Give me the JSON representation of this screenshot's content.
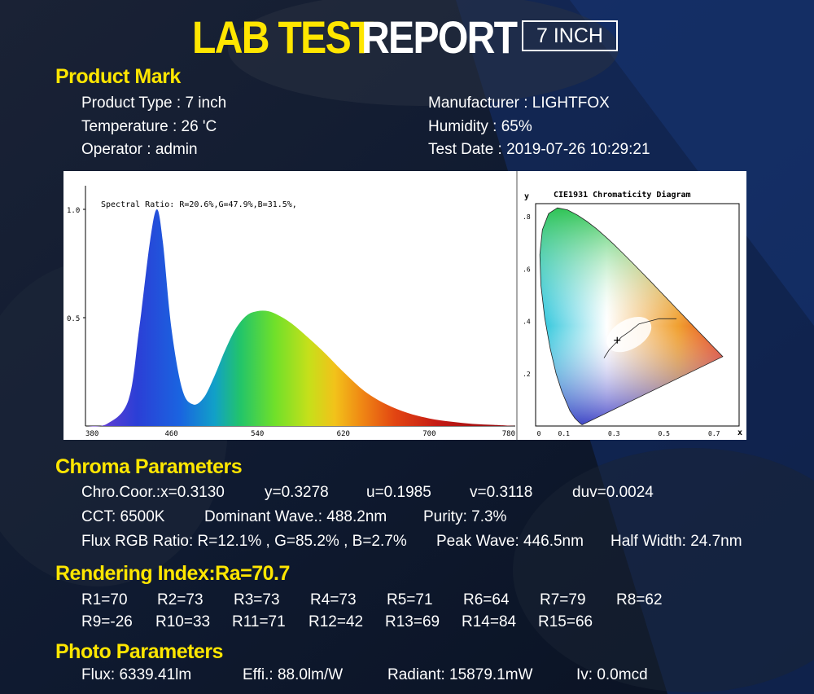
{
  "header": {
    "title_part1": "LAB TEST",
    "title_part2": "REPORT",
    "badge": "7 INCH"
  },
  "product_mark": {
    "heading": "Product Mark",
    "product_type": "Product Type : 7 inch",
    "temperature": "Temperature : 26 'C",
    "operator": "Operator : admin",
    "manufacturer": "Manufacturer : LIGHTFOX",
    "humidity": "Humidity : 65%",
    "test_date": "Test Date : 2019-07-26 10:29:21"
  },
  "chart_data": [
    {
      "type": "area",
      "annotation": "Spectral Ratio:  R=20.6%,G=47.9%,B=31.5%,",
      "x_ticks": [
        "380",
        "460",
        "540",
        "620",
        "700",
        "780"
      ],
      "y_ticks": [
        "1.0",
        "0.5"
      ],
      "xlim": [
        380,
        780
      ],
      "ylim": [
        0,
        1.0
      ],
      "x": [
        380,
        400,
        420,
        430,
        440,
        446.5,
        452,
        460,
        470,
        480,
        490,
        500,
        510,
        520,
        530,
        540,
        550,
        560,
        570,
        580,
        600,
        620,
        640,
        660,
        680,
        700,
        720,
        740,
        760,
        780
      ],
      "y": [
        0.0,
        0.01,
        0.12,
        0.45,
        0.85,
        1.0,
        0.85,
        0.45,
        0.17,
        0.1,
        0.13,
        0.23,
        0.35,
        0.45,
        0.51,
        0.53,
        0.53,
        0.51,
        0.48,
        0.44,
        0.35,
        0.25,
        0.16,
        0.1,
        0.06,
        0.035,
        0.02,
        0.01,
        0.005,
        0.0
      ]
    },
    {
      "type": "scatter",
      "title": "CIE1931 Chromaticity Diagram",
      "xlabel": "x",
      "ylabel": "y",
      "x_ticks": [
        "0",
        "0.1",
        "0.3",
        "0.5",
        "0.7"
      ],
      "y_ticks": [
        ".8",
        ".6",
        ".4",
        ".2"
      ],
      "xlim": [
        0,
        0.8
      ],
      "ylim": [
        0,
        0.85
      ],
      "point": {
        "x": 0.313,
        "y": 0.3278
      },
      "locus": [
        [
          0.1741,
          0.005
        ],
        [
          0.1738,
          0.0049
        ],
        [
          0.1703,
          0.0058
        ],
        [
          0.1666,
          0.0089
        ],
        [
          0.1611,
          0.0138
        ],
        [
          0.144,
          0.0297
        ],
        [
          0.1241,
          0.0578
        ],
        [
          0.0913,
          0.1327
        ],
        [
          0.0687,
          0.2007
        ],
        [
          0.0454,
          0.295
        ],
        [
          0.0235,
          0.4127
        ],
        [
          0.0082,
          0.5384
        ],
        [
          0.0039,
          0.6548
        ],
        [
          0.0139,
          0.7502
        ],
        [
          0.0389,
          0.812
        ],
        [
          0.0743,
          0.8338
        ],
        [
          0.1142,
          0.8262
        ],
        [
          0.1547,
          0.8059
        ],
        [
          0.1929,
          0.7816
        ],
        [
          0.2296,
          0.7543
        ],
        [
          0.2658,
          0.7243
        ],
        [
          0.3016,
          0.6923
        ],
        [
          0.3373,
          0.6589
        ],
        [
          0.3731,
          0.6245
        ],
        [
          0.4087,
          0.5896
        ],
        [
          0.4441,
          0.5547
        ],
        [
          0.4788,
          0.5202
        ],
        [
          0.5125,
          0.4866
        ],
        [
          0.5448,
          0.4544
        ],
        [
          0.5752,
          0.4242
        ],
        [
          0.6029,
          0.3965
        ],
        [
          0.627,
          0.3725
        ],
        [
          0.6482,
          0.3514
        ],
        [
          0.6658,
          0.334
        ],
        [
          0.6801,
          0.3197
        ],
        [
          0.6915,
          0.3083
        ],
        [
          0.7006,
          0.2993
        ],
        [
          0.7079,
          0.292
        ],
        [
          0.7347,
          0.2653
        ]
      ]
    }
  ],
  "chroma": {
    "heading": "Chroma Parameters",
    "chro_x": "Chro.Coor.:x=0.3130",
    "y": "y=0.3278",
    "u": "u=0.1985",
    "v": "v=0.3118",
    "duv": "duv=0.0024",
    "cct": "CCT: 6500K",
    "dominant_wave": "Dominant Wave.: 488.2nm",
    "purity": "Purity: 7.3%",
    "flux_rgb": "Flux RGB Ratio: R=12.1% , G=85.2% , B=2.7%",
    "peak_wave": "Peak Wave: 446.5nm",
    "half_width": "Half Width: 24.7nm"
  },
  "rendering": {
    "heading": "Rendering Index:Ra=70.7",
    "row1": [
      "R1=70",
      "R2=73",
      "R3=73",
      "R4=73",
      "R5=71",
      "R6=64",
      "R7=79",
      "R8=62"
    ],
    "row2": [
      "R9=-26",
      "R10=33",
      "R11=71",
      "R12=42",
      "R13=69",
      "R14=84",
      "R15=66"
    ]
  },
  "photo": {
    "heading": "Photo Parameters",
    "flux": "Flux: 6339.41lm",
    "effi": "Effi.: 88.0lm/W",
    "radiant": "Radiant: 15879.1mW",
    "iv": "Iv: 0.0mcd"
  },
  "colors": {
    "accent": "#ffe600",
    "background": "#0c1528",
    "text": "#ffffff"
  }
}
